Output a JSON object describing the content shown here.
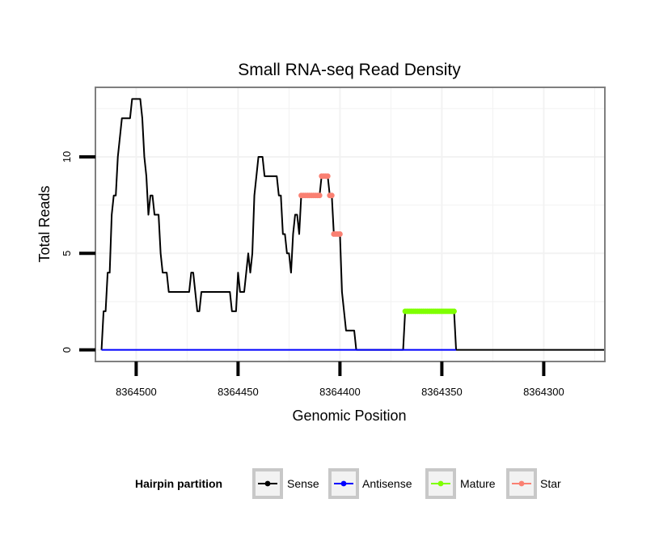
{
  "chart_data": {
    "type": "line",
    "title": "Small RNA-seq Read Density",
    "xlabel": "Genomic Position",
    "ylabel": "Total Reads",
    "x_reversed": true,
    "xlim": [
      8364520,
      8364270
    ],
    "ylim": [
      -0.6,
      13.6
    ],
    "x_ticks": [
      8364500,
      8364450,
      8364400,
      8364350,
      8364300
    ],
    "x_tick_labels": [
      "8364500",
      "8364450",
      "8364400",
      "8364350",
      "8364300"
    ],
    "y_ticks": [
      0,
      5,
      10
    ],
    "y_tick_labels": [
      "0",
      "5",
      "10"
    ],
    "grid": true,
    "legend": {
      "title": "Hairpin partition",
      "position": "bottom",
      "entries": [
        {
          "name": "Sense",
          "color": "#000000"
        },
        {
          "name": "Antisense",
          "color": "#0000ff"
        },
        {
          "name": "Mature",
          "color": "#7fff00"
        },
        {
          "name": "Star",
          "color": "#fa8072"
        }
      ]
    },
    "series": [
      {
        "name": "Sense",
        "color": "#000000",
        "points": [
          [
            8364517,
            0
          ],
          [
            8364516,
            2
          ],
          [
            8364515,
            2
          ],
          [
            8364514,
            4
          ],
          [
            8364513,
            4
          ],
          [
            8364512,
            7
          ],
          [
            8364511,
            8
          ],
          [
            8364510,
            8
          ],
          [
            8364509,
            10
          ],
          [
            8364508,
            11
          ],
          [
            8364507,
            12
          ],
          [
            8364506,
            12
          ],
          [
            8364505,
            12
          ],
          [
            8364504,
            12
          ],
          [
            8364503,
            12
          ],
          [
            8364502,
            13
          ],
          [
            8364501,
            13
          ],
          [
            8364500,
            13
          ],
          [
            8364499,
            13
          ],
          [
            8364498,
            13
          ],
          [
            8364497,
            12
          ],
          [
            8364496,
            10
          ],
          [
            8364495,
            9
          ],
          [
            8364494,
            7
          ],
          [
            8364493,
            8
          ],
          [
            8364492,
            8
          ],
          [
            8364491,
            7
          ],
          [
            8364490,
            7
          ],
          [
            8364489,
            7
          ],
          [
            8364488,
            5
          ],
          [
            8364487,
            4
          ],
          [
            8364486,
            4
          ],
          [
            8364485,
            4
          ],
          [
            8364484,
            3
          ],
          [
            8364483,
            3
          ],
          [
            8364482,
            3
          ],
          [
            8364481,
            3
          ],
          [
            8364480,
            3
          ],
          [
            8364479,
            3
          ],
          [
            8364478,
            3
          ],
          [
            8364477,
            3
          ],
          [
            8364476,
            3
          ],
          [
            8364475,
            3
          ],
          [
            8364474,
            3
          ],
          [
            8364473,
            4
          ],
          [
            8364472,
            4
          ],
          [
            8364471,
            3
          ],
          [
            8364470,
            2
          ],
          [
            8364469,
            2
          ],
          [
            8364468,
            3
          ],
          [
            8364467,
            3
          ],
          [
            8364466,
            3
          ],
          [
            8364465,
            3
          ],
          [
            8364464,
            3
          ],
          [
            8364463,
            3
          ],
          [
            8364462,
            3
          ],
          [
            8364461,
            3
          ],
          [
            8364460,
            3
          ],
          [
            8364459,
            3
          ],
          [
            8364458,
            3
          ],
          [
            8364457,
            3
          ],
          [
            8364456,
            3
          ],
          [
            8364455,
            3
          ],
          [
            8364454,
            3
          ],
          [
            8364453,
            2
          ],
          [
            8364452,
            2
          ],
          [
            8364451,
            2
          ],
          [
            8364450,
            4
          ],
          [
            8364449,
            3
          ],
          [
            8364448,
            3
          ],
          [
            8364447,
            3
          ],
          [
            8364446,
            4
          ],
          [
            8364445,
            5
          ],
          [
            8364444,
            4
          ],
          [
            8364443,
            5
          ],
          [
            8364442,
            8
          ],
          [
            8364441,
            9
          ],
          [
            8364440,
            10
          ],
          [
            8364439,
            10
          ],
          [
            8364438,
            10
          ],
          [
            8364437,
            9
          ],
          [
            8364436,
            9
          ],
          [
            8364435,
            9
          ],
          [
            8364434,
            9
          ],
          [
            8364433,
            9
          ],
          [
            8364432,
            9
          ],
          [
            8364431,
            9
          ],
          [
            8364430,
            8
          ],
          [
            8364429,
            8
          ],
          [
            8364428,
            6
          ],
          [
            8364427,
            6
          ],
          [
            8364426,
            5
          ],
          [
            8364425,
            5
          ],
          [
            8364424,
            4
          ],
          [
            8364423,
            6
          ],
          [
            8364422,
            7
          ],
          [
            8364421,
            7
          ],
          [
            8364420,
            6
          ],
          [
            8364419,
            8
          ],
          [
            8364418,
            8
          ],
          [
            8364417,
            8
          ],
          [
            8364416,
            8
          ],
          [
            8364415,
            8
          ],
          [
            8364414,
            8
          ],
          [
            8364413,
            8
          ],
          [
            8364412,
            8
          ],
          [
            8364411,
            8
          ],
          [
            8364410,
            8
          ],
          [
            8364409,
            9
          ],
          [
            8364408,
            9
          ],
          [
            8364407,
            9
          ],
          [
            8364406,
            9
          ],
          [
            8364405,
            8
          ],
          [
            8364404,
            8
          ],
          [
            8364403,
            6
          ],
          [
            8364402,
            6
          ],
          [
            8364401,
            6
          ],
          [
            8364400,
            6
          ],
          [
            8364399,
            3
          ],
          [
            8364398,
            2
          ],
          [
            8364397,
            1
          ],
          [
            8364396,
            1
          ],
          [
            8364395,
            1
          ],
          [
            8364394,
            1
          ],
          [
            8364393,
            1
          ],
          [
            8364392,
            0
          ],
          [
            8364391,
            0
          ],
          [
            8364369,
            0
          ],
          [
            8364368,
            2
          ],
          [
            8364367,
            2
          ],
          [
            8364357,
            2
          ],
          [
            8364346,
            2
          ],
          [
            8364344,
            2
          ],
          [
            8364343,
            0
          ],
          [
            8364342,
            0
          ],
          [
            8364270,
            0
          ]
        ]
      },
      {
        "name": "Antisense",
        "color": "#0000ff",
        "points": [
          [
            8364517,
            0
          ],
          [
            8364343,
            0
          ]
        ]
      },
      {
        "name": "Mature",
        "color": "#7fff00",
        "points": [
          [
            8364368,
            2
          ],
          [
            8364367,
            2
          ],
          [
            8364366,
            2
          ],
          [
            8364365,
            2
          ],
          [
            8364364,
            2
          ],
          [
            8364363,
            2
          ],
          [
            8364362,
            2
          ],
          [
            8364361,
            2
          ],
          [
            8364360,
            2
          ],
          [
            8364359,
            2
          ],
          [
            8364358,
            2
          ],
          [
            8364357,
            2
          ],
          [
            8364356,
            2
          ],
          [
            8364355,
            2
          ],
          [
            8364354,
            2
          ],
          [
            8364353,
            2
          ],
          [
            8364352,
            2
          ],
          [
            8364351,
            2
          ],
          [
            8364350,
            2
          ],
          [
            8364349,
            2
          ],
          [
            8364348,
            2
          ],
          [
            8364347,
            2
          ],
          [
            8364346,
            2
          ],
          [
            8364345,
            2
          ],
          [
            8364344,
            2
          ]
        ]
      },
      {
        "name": "Star",
        "color": "#fa8072",
        "points": [
          [
            8364419,
            8
          ],
          [
            8364418,
            8
          ],
          [
            8364417,
            8
          ],
          [
            8364416,
            8
          ],
          [
            8364415,
            8
          ],
          [
            8364414,
            8
          ],
          [
            8364413,
            8
          ],
          [
            8364412,
            8
          ],
          [
            8364411,
            8
          ],
          [
            8364410,
            8
          ],
          [
            8364409,
            9
          ],
          [
            8364408,
            9
          ],
          [
            8364407,
            9
          ],
          [
            8364406,
            9
          ],
          [
            8364405,
            8
          ],
          [
            8364404,
            8
          ],
          [
            8364403,
            6
          ],
          [
            8364402,
            6
          ],
          [
            8364401,
            6
          ],
          [
            8364400,
            6
          ]
        ]
      }
    ]
  }
}
